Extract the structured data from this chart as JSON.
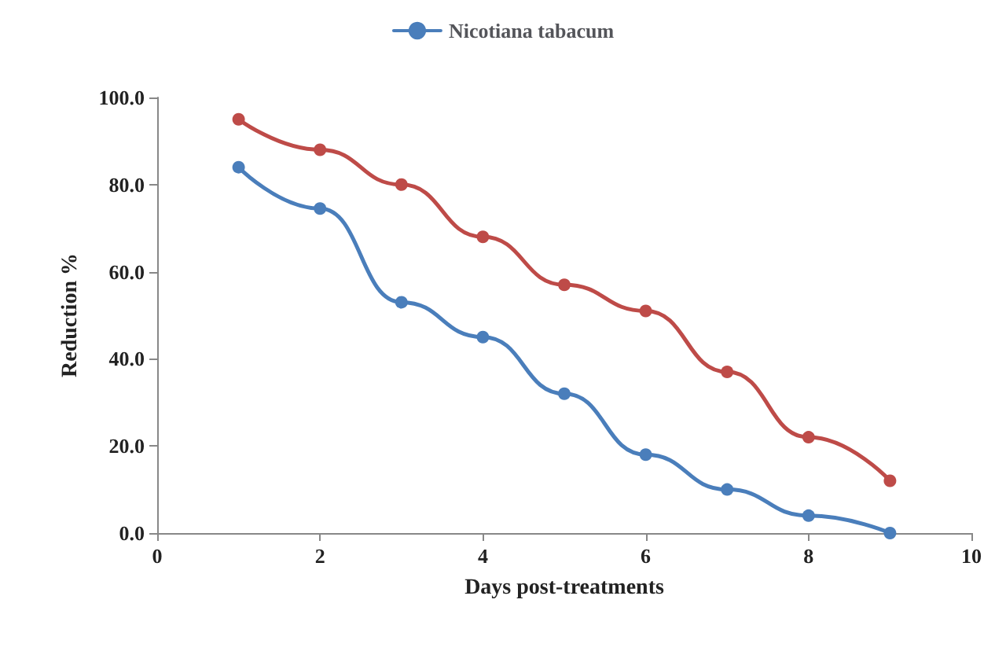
{
  "chart_data": {
    "type": "line",
    "xlabel": "Days post-treatments",
    "ylabel": "Reduction %",
    "x": [
      1,
      2,
      3,
      4,
      5,
      6,
      7,
      8,
      9
    ],
    "series": [
      {
        "name": "Nicotiana tabacum",
        "color": "#4a7ebb",
        "values": [
          84,
          74.5,
          53,
          45,
          32,
          18,
          10,
          4,
          0
        ]
      },
      {
        "color": "#be4b48",
        "values": [
          95,
          88,
          80,
          68,
          57,
          51,
          37,
          22,
          12
        ]
      }
    ],
    "xlim": [
      0,
      10
    ],
    "xticks": [
      0,
      2,
      4,
      6,
      8,
      10
    ],
    "ylim": [
      0,
      100
    ],
    "yticks": [
      {
        "value": 0,
        "label": "0.0"
      },
      {
        "value": 20,
        "label": "20.0"
      },
      {
        "value": 40,
        "label": "40.0"
      },
      {
        "value": 60,
        "label": "60.0"
      },
      {
        "value": 80,
        "label": "80.0"
      },
      {
        "value": 100,
        "label": "100.0"
      }
    ],
    "grid": false,
    "legend": "top",
    "marker": "circle",
    "line_style": "solid"
  }
}
